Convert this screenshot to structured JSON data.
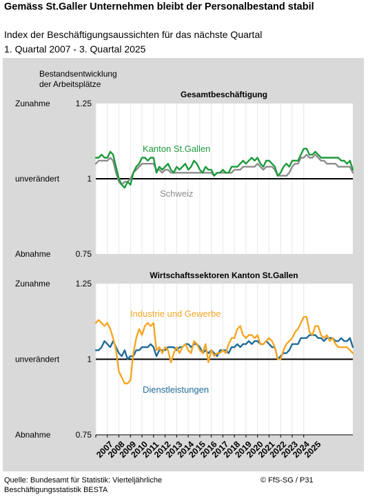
{
  "header": {
    "title": "Gemäss St.Galler Unternehmen bleibt der Personalbestand stabil",
    "subtitle1": "Index der Beschäftigungsaussichten für das nächste Quartal",
    "subtitle2": "1. Quartal 2007 - 3. Quartal 2025"
  },
  "footer": {
    "source_line1": "Quelle: Bundesamt für Statistik: Vierteljährliche",
    "source_line2": "Beschäftigungsstatistik BESTA",
    "copyright": "© FfS-SG / P31"
  },
  "colors": {
    "kanton": "#1a9a3a",
    "schweiz": "#8c8c8c",
    "industrie": "#f5a623",
    "dienst": "#1f6b9a",
    "panel": "#d9d9d9"
  },
  "chart_data": [
    {
      "type": "line",
      "title": "Gesamtbeschäftigung",
      "ylabel": "Bestandsentwicklung der Arbeitsplätze",
      "ylim": [
        0.75,
        1.25
      ],
      "y_ticks": [
        0.75,
        1,
        1.25
      ],
      "y_tick_labels": [
        "0.75",
        "1",
        "1.25"
      ],
      "y_category_labels": [
        "Abnahme",
        "unverändert",
        "Zunahme"
      ],
      "x_start": "2007 Q1",
      "x_end": "2025 Q3",
      "series": [
        {
          "name": "Kanton St.Gallen",
          "color_key": "kanton",
          "values": [
            1.07,
            1.07,
            1.08,
            1.07,
            1.07,
            1.09,
            1.08,
            1.04,
            1.0,
            0.98,
            0.97,
            0.99,
            0.98,
            1.02,
            1.04,
            1.05,
            1.07,
            1.07,
            1.06,
            1.07,
            1.07,
            1.02,
            1.04,
            1.03,
            1.04,
            1.05,
            1.03,
            1.02,
            1.04,
            1.03,
            1.04,
            1.05,
            1.03,
            1.04,
            1.06,
            1.05,
            1.03,
            1.02,
            1.04,
            1.03,
            1.03,
            1.01,
            1.02,
            1.02,
            1.03,
            1.02,
            1.02,
            1.04,
            1.04,
            1.04,
            1.05,
            1.06,
            1.05,
            1.06,
            1.07,
            1.06,
            1.07,
            1.05,
            1.04,
            1.06,
            1.06,
            1.05,
            1.04,
            1.01,
            1.02,
            1.04,
            1.05,
            1.04,
            1.06,
            1.06,
            1.06,
            1.08,
            1.1,
            1.1,
            1.08,
            1.08,
            1.09,
            1.08,
            1.07,
            1.07,
            1.07,
            1.07,
            1.07,
            1.07,
            1.07,
            1.06,
            1.06,
            1.05,
            1.06,
            1.03
          ]
        },
        {
          "name": "Schweiz",
          "color_key": "schweiz",
          "values": [
            1.05,
            1.06,
            1.06,
            1.06,
            1.06,
            1.07,
            1.06,
            1.02,
            0.99,
            0.98,
            0.99,
            0.99,
            1.0,
            1.02,
            1.03,
            1.04,
            1.05,
            1.05,
            1.05,
            1.05,
            1.05,
            1.03,
            1.03,
            1.02,
            1.03,
            1.03,
            1.02,
            1.02,
            1.02,
            1.02,
            1.02,
            1.02,
            1.02,
            1.02,
            1.02,
            1.02,
            1.02,
            1.02,
            1.02,
            1.02,
            1.02,
            1.01,
            1.02,
            1.02,
            1.02,
            1.02,
            1.02,
            1.02,
            1.03,
            1.03,
            1.03,
            1.04,
            1.04,
            1.04,
            1.04,
            1.04,
            1.05,
            1.04,
            1.03,
            1.04,
            1.04,
            1.04,
            1.03,
            1.01,
            1.01,
            1.01,
            1.01,
            1.02,
            1.04,
            1.05,
            1.05,
            1.07,
            1.07,
            1.08,
            1.07,
            1.07,
            1.08,
            1.07,
            1.06,
            1.06,
            1.05,
            1.05,
            1.05,
            1.05,
            1.04,
            1.04,
            1.04,
            1.04,
            1.04,
            1.02
          ]
        }
      ]
    },
    {
      "type": "line",
      "title": "Wirtschaftssektoren Kanton St.Gallen",
      "ylim": [
        0.75,
        1.25
      ],
      "y_ticks": [
        0.75,
        1,
        1.25
      ],
      "y_tick_labels": [
        "0.75",
        "1",
        "1.25"
      ],
      "y_category_labels": [
        "Abnahme",
        "unverändert",
        "Zunahme"
      ],
      "x_start": "2007 Q1",
      "x_end": "2025 Q3",
      "x_tick_labels": [
        "2007",
        "2008",
        "2009",
        "2010",
        "2011",
        "2012",
        "2013",
        "2014",
        "2015",
        "2016",
        "2017",
        "2018",
        "2019",
        "2020",
        "2021",
        "2022",
        "2023",
        "2024",
        "2025"
      ],
      "series": [
        {
          "name": "Industrie und Gewerbe",
          "color_key": "industrie",
          "values": [
            1.12,
            1.13,
            1.12,
            1.11,
            1.12,
            1.1,
            1.07,
            1.03,
            0.96,
            0.94,
            0.92,
            0.92,
            0.93,
            1.02,
            1.07,
            1.1,
            1.08,
            1.11,
            1.12,
            1.11,
            1.12,
            1.03,
            1.04,
            1.02,
            1.04,
            1.03,
            0.99,
            1.02,
            1.04,
            1.02,
            1.04,
            1.05,
            1.03,
            1.02,
            1.06,
            1.05,
            1.03,
            1.02,
            1.05,
            0.99,
            1.03,
            1.01,
            1.02,
            1.02,
            1.03,
            1.02,
            1.05,
            1.07,
            1.07,
            1.1,
            1.11,
            1.08,
            1.07,
            1.08,
            1.08,
            1.07,
            1.08,
            1.05,
            1.05,
            1.06,
            1.07,
            1.06,
            1.04,
            1.0,
            1.0,
            1.03,
            1.05,
            1.06,
            1.07,
            1.09,
            1.1,
            1.12,
            1.14,
            1.14,
            1.09,
            1.08,
            1.11,
            1.11,
            1.08,
            1.07,
            1.08,
            1.06,
            1.07,
            1.05,
            1.04,
            1.04,
            1.04,
            1.04,
            1.03,
            1.02
          ]
        },
        {
          "name": "Dienstleistungen",
          "color_key": "dienst",
          "values": [
            1.03,
            1.03,
            1.04,
            1.06,
            1.05,
            1.04,
            1.06,
            1.04,
            1.02,
            1.01,
            1.03,
            1.0,
            1.01,
            1.01,
            1.03,
            1.03,
            1.04,
            1.04,
            1.04,
            1.05,
            1.04,
            1.01,
            1.03,
            1.03,
            1.03,
            1.04,
            1.04,
            1.04,
            1.03,
            1.04,
            1.04,
            1.05,
            1.05,
            1.04,
            1.05,
            1.05,
            1.04,
            1.02,
            1.03,
            1.02,
            1.03,
            1.02,
            1.01,
            1.03,
            1.03,
            1.03,
            1.02,
            1.04,
            1.04,
            1.05,
            1.04,
            1.05,
            1.05,
            1.06,
            1.05,
            1.06,
            1.06,
            1.05,
            1.05,
            1.06,
            1.05,
            1.04,
            1.04,
            1.0,
            1.01,
            1.02,
            1.02,
            1.03,
            1.05,
            1.05,
            1.05,
            1.07,
            1.07,
            1.07,
            1.08,
            1.08,
            1.08,
            1.07,
            1.07,
            1.06,
            1.07,
            1.07,
            1.07,
            1.06,
            1.06,
            1.07,
            1.06,
            1.06,
            1.07,
            1.04
          ]
        }
      ]
    }
  ]
}
